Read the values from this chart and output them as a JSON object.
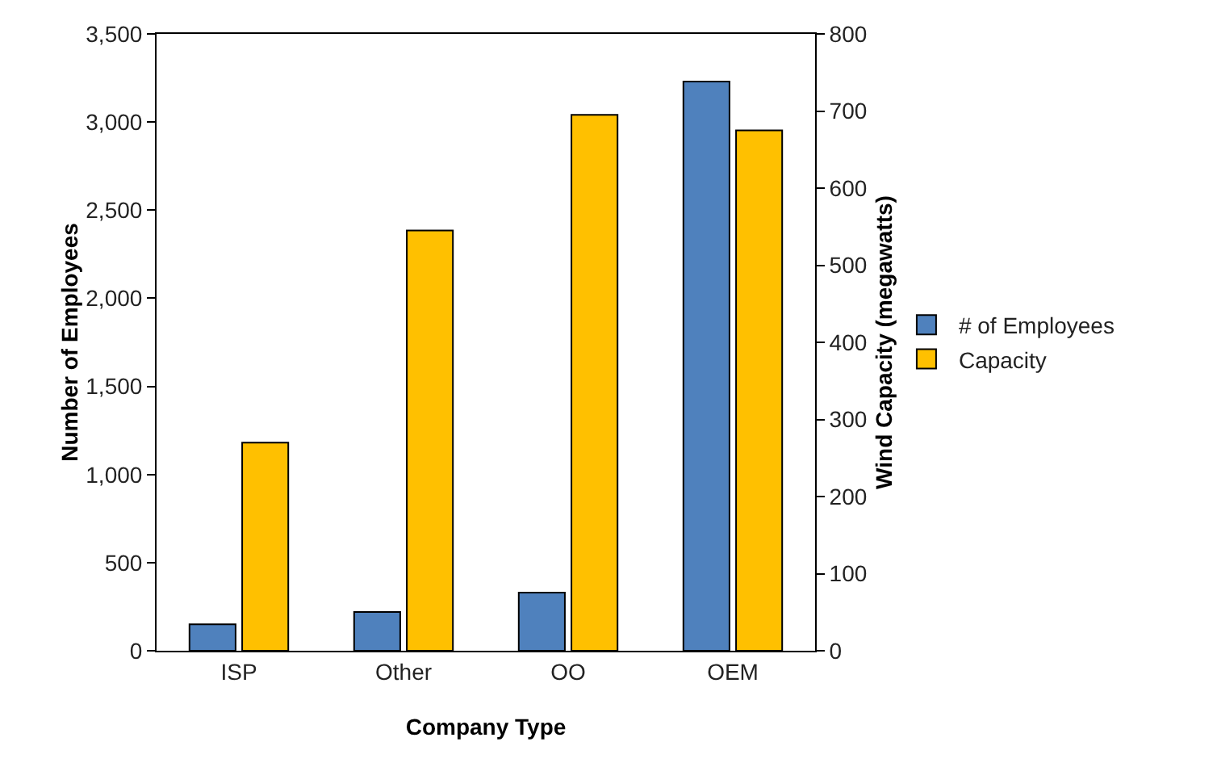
{
  "chart_data": {
    "type": "bar",
    "xlabel": "Company Type",
    "ylabel": "Number of Employees",
    "y2label": "Wind Capacity (megawatts)",
    "categories": [
      "ISP",
      "Other",
      "OO",
      "OEM"
    ],
    "series": [
      {
        "name": "# of Employees",
        "color": "#4f81bd",
        "values": [
          150,
          220,
          330,
          3230
        ]
      },
      {
        "name": "Capacity",
        "color": "#ffc000",
        "values": [
          270,
          545,
          695,
          675
        ],
        "axis": "y2"
      }
    ],
    "ylim": [
      0,
      3500
    ],
    "yticks": [
      {
        "value": 0,
        "label": "0"
      },
      {
        "value": 500,
        "label": "500"
      },
      {
        "value": 1000,
        "label": "1,000"
      },
      {
        "value": 1500,
        "label": "1,500"
      },
      {
        "value": 2000,
        "label": "2,000"
      },
      {
        "value": 2500,
        "label": "2,500"
      },
      {
        "value": 3000,
        "label": "3,000"
      },
      {
        "value": 3500,
        "label": "3,500"
      }
    ],
    "y2lim": [
      0,
      800
    ],
    "y2ticks": [
      0,
      100,
      200,
      300,
      400,
      500,
      600,
      700,
      800
    ],
    "grid": false,
    "legend": "right"
  }
}
